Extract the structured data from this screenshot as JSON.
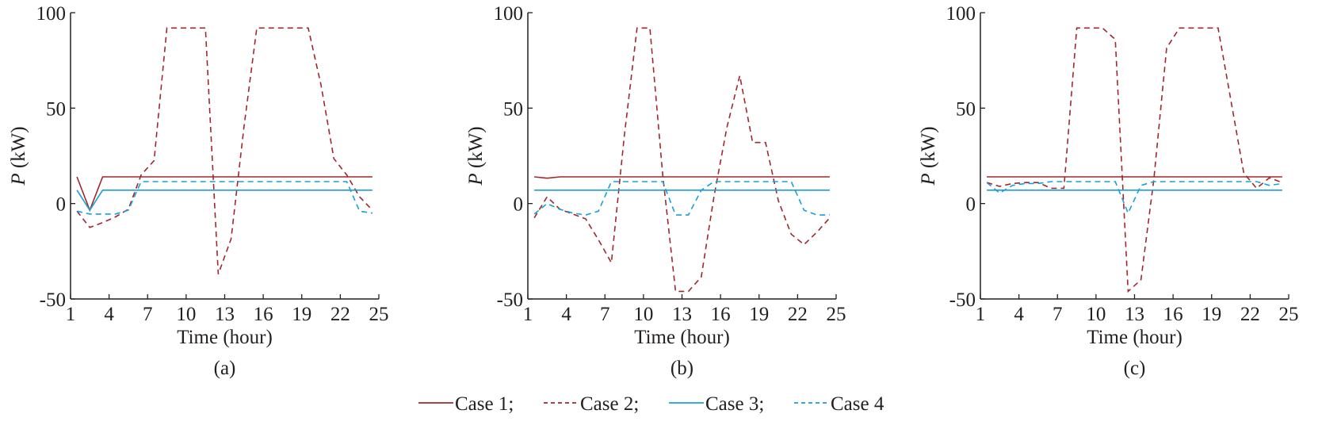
{
  "colors": {
    "case1": "#a0282d",
    "case2": "#a0282d",
    "case3": "#1a9fd9",
    "case4": "#1a9fd9",
    "axis": "#231f20"
  },
  "legend": {
    "items": [
      {
        "label": "Case 1;",
        "style": "solid",
        "color": "#a0282d"
      },
      {
        "label": "Case 2;",
        "style": "dashed",
        "color": "#a0282d"
      },
      {
        "label": "Case 3;",
        "style": "solid",
        "color": "#1a9fd9"
      },
      {
        "label": "Case 4",
        "style": "dashed",
        "color": "#1a9fd9"
      }
    ]
  },
  "chart_data": [
    {
      "type": "line",
      "panel_label": "(a)",
      "xlabel": "Time (hour)",
      "ylabel_italic": "P",
      "ylabel_unit": " (kW)",
      "xlim": [
        1,
        25
      ],
      "ylim": [
        -50,
        100
      ],
      "xticks": [
        1,
        4,
        7,
        10,
        13,
        16,
        19,
        22,
        25
      ],
      "yticks": [
        -50,
        0,
        50,
        100
      ],
      "x": [
        1.5,
        2.5,
        3.5,
        4.5,
        5.5,
        6.5,
        7.5,
        8.5,
        9.5,
        10.5,
        11.5,
        12.5,
        13.5,
        14.5,
        15.5,
        16.5,
        17.5,
        18.5,
        19.5,
        20.5,
        21.5,
        22.5,
        23.5,
        24.5
      ],
      "series": [
        {
          "name": "Case 1",
          "values": [
            14,
            -3.5,
            14,
            14,
            14,
            14,
            14,
            14,
            14,
            14,
            14,
            14,
            14,
            14,
            14,
            14,
            14,
            14,
            14,
            14,
            14,
            14,
            14,
            14
          ]
        },
        {
          "name": "Case 2",
          "values": [
            -4,
            -12.5,
            -10,
            -7,
            -3,
            15,
            22.5,
            92,
            92,
            92,
            92,
            -37,
            -18.5,
            40,
            92,
            92,
            92,
            92,
            92,
            62,
            23.5,
            15,
            3.5,
            -3.5
          ]
        },
        {
          "name": "Case 3",
          "values": [
            7,
            -3.5,
            7,
            7,
            7,
            7,
            7,
            7,
            7,
            7,
            7,
            7,
            7,
            7,
            7,
            7,
            7,
            7,
            7,
            7,
            7,
            7,
            7,
            7
          ]
        },
        {
          "name": "Case 4",
          "values": [
            -4,
            -5.5,
            -5.5,
            -5.5,
            -3.5,
            11.5,
            11.5,
            11.5,
            11.5,
            11.5,
            11.5,
            11.5,
            11.5,
            11.5,
            11.5,
            11.5,
            11.5,
            11.5,
            11.5,
            11.5,
            11.5,
            11.5,
            -4,
            -5
          ]
        }
      ]
    },
    {
      "type": "line",
      "panel_label": "(b)",
      "xlabel": "Time (hour)",
      "ylabel_italic": "P",
      "ylabel_unit": " (kW)",
      "xlim": [
        1,
        25
      ],
      "ylim": [
        -50,
        100
      ],
      "xticks": [
        1,
        4,
        7,
        10,
        13,
        16,
        19,
        22,
        25
      ],
      "yticks": [
        -50,
        0,
        50,
        100
      ],
      "x": [
        1.5,
        2.5,
        3.5,
        4.5,
        5.5,
        6.5,
        7.5,
        8.5,
        9.5,
        10.5,
        11.5,
        12.5,
        13.5,
        14.5,
        15.5,
        16.5,
        17.5,
        18.5,
        19.5,
        20.5,
        21.5,
        22.5,
        23.5,
        24.5
      ],
      "series": [
        {
          "name": "Case 1",
          "values": [
            14,
            13.3,
            14,
            14,
            14,
            14,
            14,
            14,
            14,
            14,
            14,
            14,
            14,
            14,
            14,
            14,
            14,
            14,
            14,
            14,
            14,
            14,
            14,
            14
          ]
        },
        {
          "name": "Case 2",
          "values": [
            -7.5,
            3.5,
            -3,
            -5.5,
            -8,
            -19,
            -31,
            35,
            92,
            92,
            15,
            -46,
            -46,
            -38.5,
            4,
            40,
            67,
            32,
            32,
            1.5,
            -16,
            -21.5,
            -15,
            -7.5
          ]
        },
        {
          "name": "Case 3",
          "values": [
            7,
            7,
            7,
            7,
            7,
            7,
            7,
            7,
            7,
            7,
            7,
            7,
            7,
            7,
            7,
            7,
            7,
            7,
            7,
            7,
            7,
            7,
            7,
            7
          ]
        },
        {
          "name": "Case 4",
          "values": [
            -5.5,
            0,
            -3,
            -5,
            -6,
            -4,
            11.5,
            11.5,
            11.5,
            11.5,
            11.5,
            -6,
            -6,
            7,
            11.5,
            11.5,
            11.5,
            11.5,
            11.5,
            11.5,
            11.5,
            -3.5,
            -6,
            -6
          ]
        }
      ]
    },
    {
      "type": "line",
      "panel_label": "(c)",
      "xlabel": "Time (hour)",
      "ylabel_italic": "P",
      "ylabel_unit": " (kW)",
      "xlim": [
        1,
        25
      ],
      "ylim": [
        -50,
        100
      ],
      "xticks": [
        1,
        4,
        7,
        10,
        13,
        16,
        19,
        22,
        25
      ],
      "yticks": [
        -50,
        0,
        50,
        100
      ],
      "x": [
        1.5,
        2.5,
        3.5,
        4.5,
        5.5,
        6.5,
        7.5,
        8.5,
        9.5,
        10.5,
        11.5,
        12.5,
        13.5,
        14.5,
        15.5,
        16.5,
        17.5,
        18.5,
        19.5,
        20.5,
        21.5,
        22.5,
        23.5,
        24.5
      ],
      "series": [
        {
          "name": "Case 1",
          "values": [
            14,
            14,
            14,
            14,
            14,
            14,
            14,
            14,
            14,
            14,
            14,
            14,
            14,
            14,
            14,
            14,
            14,
            14,
            14,
            14,
            14,
            14,
            14,
            14
          ]
        },
        {
          "name": "Case 2",
          "values": [
            11,
            9,
            10.5,
            11,
            11,
            8,
            8,
            92,
            92,
            92,
            86,
            -46,
            -40,
            12.5,
            81.5,
            92,
            92,
            92,
            92,
            54,
            16,
            8,
            13.5,
            11
          ]
        },
        {
          "name": "Case 3",
          "values": [
            7,
            7,
            7,
            7,
            7,
            7,
            7,
            7,
            7,
            7,
            7,
            7,
            7,
            7,
            7,
            7,
            7,
            7,
            7,
            7,
            7,
            7,
            7,
            7
          ]
        },
        {
          "name": "Case 4",
          "values": [
            11,
            5.5,
            9.5,
            10.5,
            10.5,
            11.5,
            11.5,
            11.5,
            11.5,
            11.5,
            11.5,
            -5,
            9.5,
            11.5,
            11.5,
            11.5,
            11.5,
            11.5,
            11.5,
            11.5,
            11.5,
            11.5,
            9.5,
            10.5
          ]
        }
      ]
    }
  ]
}
